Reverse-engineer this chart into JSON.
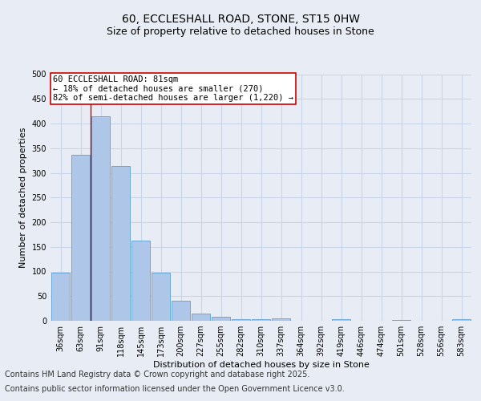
{
  "title_line1": "60, ECCLESHALL ROAD, STONE, ST15 0HW",
  "title_line2": "Size of property relative to detached houses in Stone",
  "xlabel": "Distribution of detached houses by size in Stone",
  "ylabel": "Number of detached properties",
  "categories": [
    "36sqm",
    "63sqm",
    "91sqm",
    "118sqm",
    "145sqm",
    "173sqm",
    "200sqm",
    "227sqm",
    "255sqm",
    "282sqm",
    "310sqm",
    "337sqm",
    "364sqm",
    "392sqm",
    "419sqm",
    "446sqm",
    "474sqm",
    "501sqm",
    "528sqm",
    "556sqm",
    "583sqm"
  ],
  "values": [
    97,
    337,
    415,
    314,
    163,
    97,
    41,
    14,
    8,
    4,
    4,
    5,
    0,
    0,
    4,
    0,
    0,
    2,
    0,
    0,
    3
  ],
  "bar_color": "#aec6e8",
  "bar_edge_color": "#5a9fd4",
  "vline_x": 1.5,
  "vline_color": "#cc0000",
  "annotation_line1": "60 ECCLESHALL ROAD: 81sqm",
  "annotation_line2": "← 18% of detached houses are smaller (270)",
  "annotation_line3": "82% of semi-detached houses are larger (1,220) →",
  "annotation_box_color": "#cc0000",
  "annotation_box_facecolor": "white",
  "ylim": [
    0,
    500
  ],
  "yticks": [
    0,
    50,
    100,
    150,
    200,
    250,
    300,
    350,
    400,
    450,
    500
  ],
  "grid_color": "#c8d4e8",
  "background_color": "#e8edf5",
  "footer_line1": "Contains HM Land Registry data © Crown copyright and database right 2025.",
  "footer_line2": "Contains public sector information licensed under the Open Government Licence v3.0.",
  "title_fontsize": 10,
  "subtitle_fontsize": 9,
  "axis_fontsize": 8,
  "tick_fontsize": 7,
  "annotation_fontsize": 7.5,
  "footer_fontsize": 7
}
